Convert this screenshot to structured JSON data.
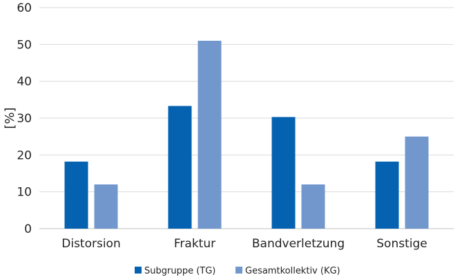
{
  "chart_data": {
    "type": "bar",
    "categories": [
      "Distorsion",
      "Fraktur",
      "Bandverletzung",
      "Sonstige"
    ],
    "series": [
      {
        "name": "Subgruppe (TG)",
        "values": [
          18.2,
          33.3,
          30.3,
          18.2
        ],
        "color": "#0462b0"
      },
      {
        "name": "Gesamtkollektiv (KG)",
        "values": [
          12.0,
          51.0,
          12.0,
          25.0
        ],
        "color": "#7197cd"
      }
    ],
    "ylabel": "[%]",
    "xlabel": "",
    "ylim": [
      0,
      60
    ],
    "yticks": [
      0,
      10,
      20,
      30,
      40,
      50,
      60
    ],
    "grid": true,
    "legend_position": "bottom-center",
    "colors": {
      "gridline": "#d9d9d9",
      "axis": "#bfbfbf"
    }
  }
}
